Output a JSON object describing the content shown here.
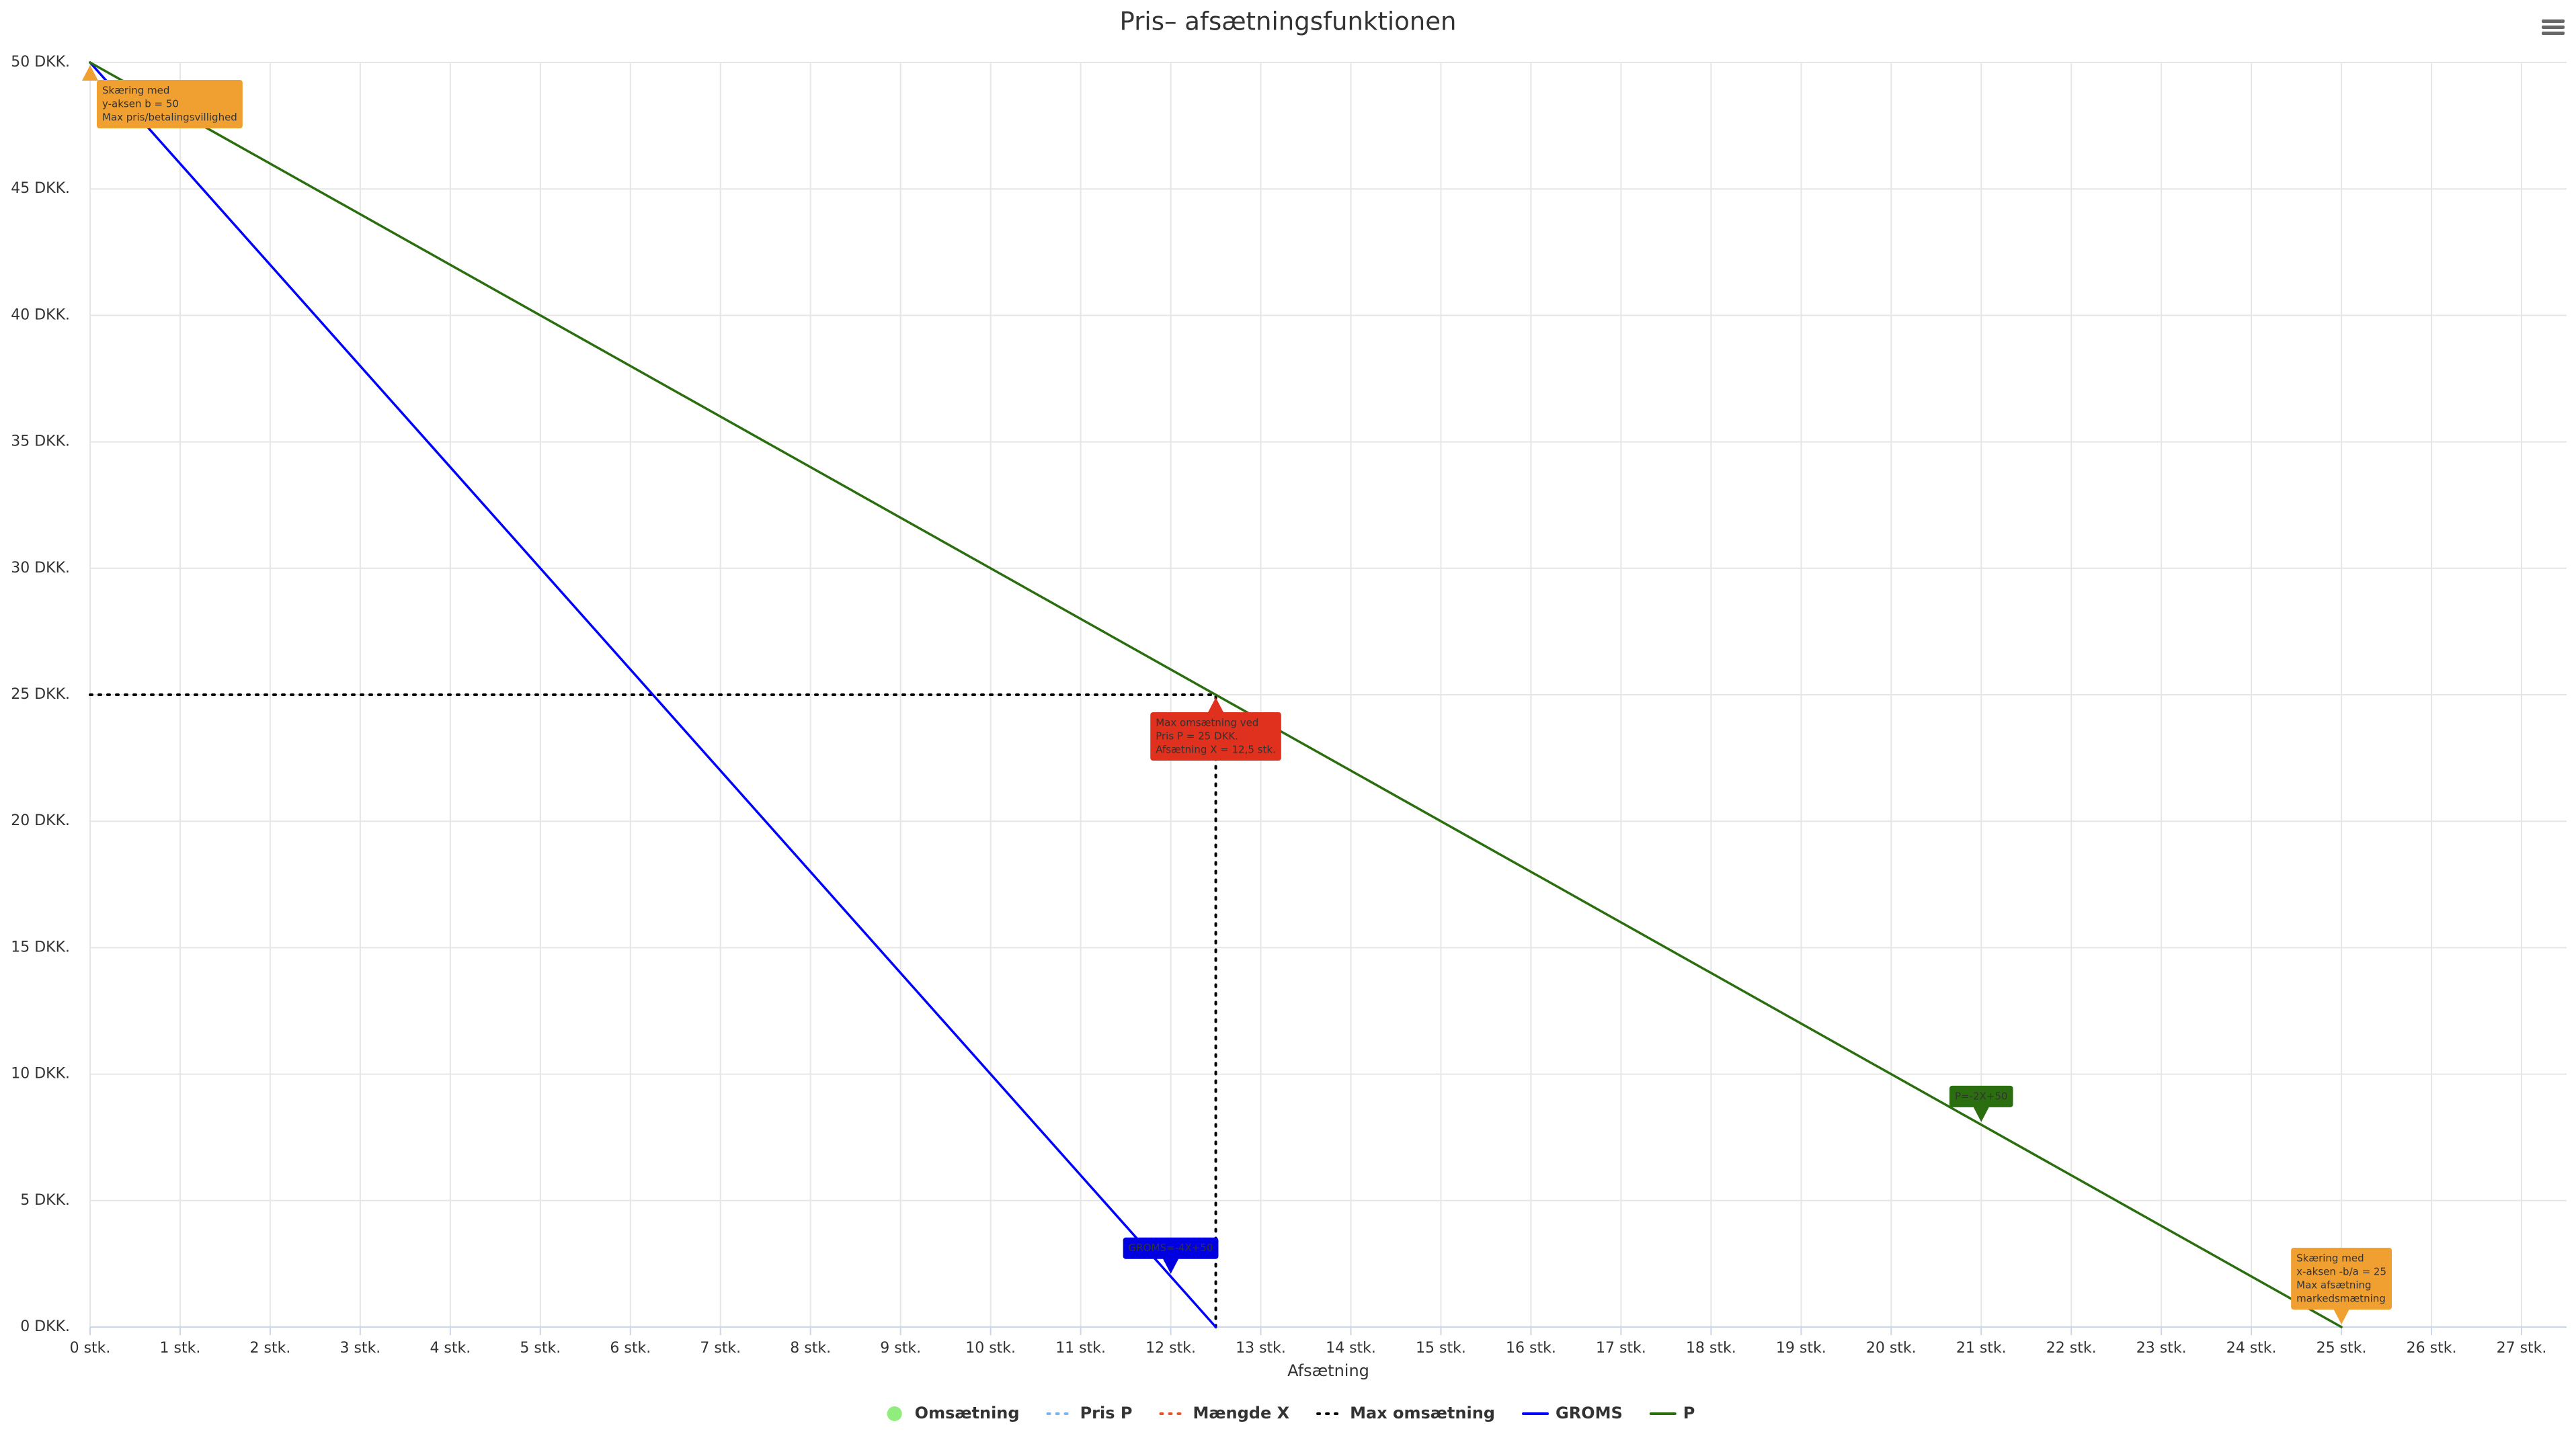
{
  "chart_data": {
    "type": "line",
    "title": "Pris– afsætningsfunktionen",
    "x_label": "Afsætning",
    "xlim": [
      0,
      27.5
    ],
    "ylim": [
      0,
      50
    ],
    "grid": true,
    "xticks": [
      {
        "value": 0,
        "label": "0 stk."
      },
      {
        "value": 1,
        "label": "1 stk."
      },
      {
        "value": 2,
        "label": "2 stk."
      },
      {
        "value": 3,
        "label": "3 stk."
      },
      {
        "value": 4,
        "label": "4 stk."
      },
      {
        "value": 5,
        "label": "5 stk."
      },
      {
        "value": 6,
        "label": "6 stk."
      },
      {
        "value": 7,
        "label": "7 stk."
      },
      {
        "value": 8,
        "label": "8 stk."
      },
      {
        "value": 9,
        "label": "9 stk."
      },
      {
        "value": 10,
        "label": "10 stk."
      },
      {
        "value": 11,
        "label": "11 stk."
      },
      {
        "value": 12,
        "label": "12 stk."
      },
      {
        "value": 13,
        "label": "13 stk."
      },
      {
        "value": 14,
        "label": "14 stk."
      },
      {
        "value": 15,
        "label": "15 stk."
      },
      {
        "value": 16,
        "label": "16 stk."
      },
      {
        "value": 17,
        "label": "17 stk."
      },
      {
        "value": 18,
        "label": "18 stk."
      },
      {
        "value": 19,
        "label": "19 stk."
      },
      {
        "value": 20,
        "label": "20 stk."
      },
      {
        "value": 21,
        "label": "21 stk."
      },
      {
        "value": 22,
        "label": "22 stk."
      },
      {
        "value": 23,
        "label": "23 stk."
      },
      {
        "value": 24,
        "label": "24 stk."
      },
      {
        "value": 25,
        "label": "25 stk."
      },
      {
        "value": 26,
        "label": "26 stk."
      },
      {
        "value": 27,
        "label": "27 stk."
      }
    ],
    "yticks": [
      {
        "value": 0,
        "label": "0 DKK."
      },
      {
        "value": 5,
        "label": "5 DKK."
      },
      {
        "value": 10,
        "label": "10 DKK."
      },
      {
        "value": 15,
        "label": "15 DKK."
      },
      {
        "value": 20,
        "label": "20 DKK."
      },
      {
        "value": 25,
        "label": "25 DKK."
      },
      {
        "value": 30,
        "label": "30 DKK."
      },
      {
        "value": 35,
        "label": "35 DKK."
      },
      {
        "value": 40,
        "label": "40 DKK."
      },
      {
        "value": 45,
        "label": "45 DKK."
      },
      {
        "value": 50,
        "label": "50 DKK."
      }
    ],
    "series": [
      {
        "name": "Omsætning",
        "color": "#90ed7d",
        "style": "marker"
      },
      {
        "name": "Pris P",
        "color": "#7cb5ec",
        "style": "dotted"
      },
      {
        "name": "Mængde X",
        "color": "#e4572e",
        "style": "dotted"
      },
      {
        "name": "Max omsætning",
        "color": "#000000",
        "style": "dotted",
        "x": [
          0,
          12.5,
          12.5
        ],
        "values": [
          25,
          25,
          0
        ]
      },
      {
        "name": "GROMS",
        "color": "#0000ff",
        "style": "solid",
        "x": [
          0,
          12.5
        ],
        "values": [
          50,
          0
        ]
      },
      {
        "name": "P",
        "color": "#2b6e0f",
        "style": "solid",
        "x": [
          0,
          25
        ],
        "values": [
          50,
          0
        ]
      }
    ],
    "annotations": [
      {
        "x": 0,
        "y": 50,
        "color": "#f0a030",
        "placement": "below",
        "lines": [
          "Skæring med",
          "y-aksen b = 50",
          "Max pris/betalingsvillighed"
        ]
      },
      {
        "x": 12.5,
        "y": 25,
        "color": "#e0301e",
        "placement": "below",
        "lines": [
          "Max omsætning ved",
          "Pris P = 25 DKK.",
          "Afsætning X = 12,5 stk."
        ]
      },
      {
        "x": 21,
        "y": 8,
        "color": "#2b6e0f",
        "placement": "above",
        "lines": [
          "P=-2X+50"
        ]
      },
      {
        "x": 12,
        "y": 2,
        "color": "#0000e0",
        "placement": "above",
        "lines": [
          "GROMS=-4X+50"
        ]
      },
      {
        "x": 25,
        "y": 0,
        "color": "#f0a030",
        "placement": "above",
        "lines": [
          "Skæring med",
          "x-aksen -b/a = 25",
          "Max afsætning",
          "markedsmætning"
        ]
      }
    ]
  }
}
